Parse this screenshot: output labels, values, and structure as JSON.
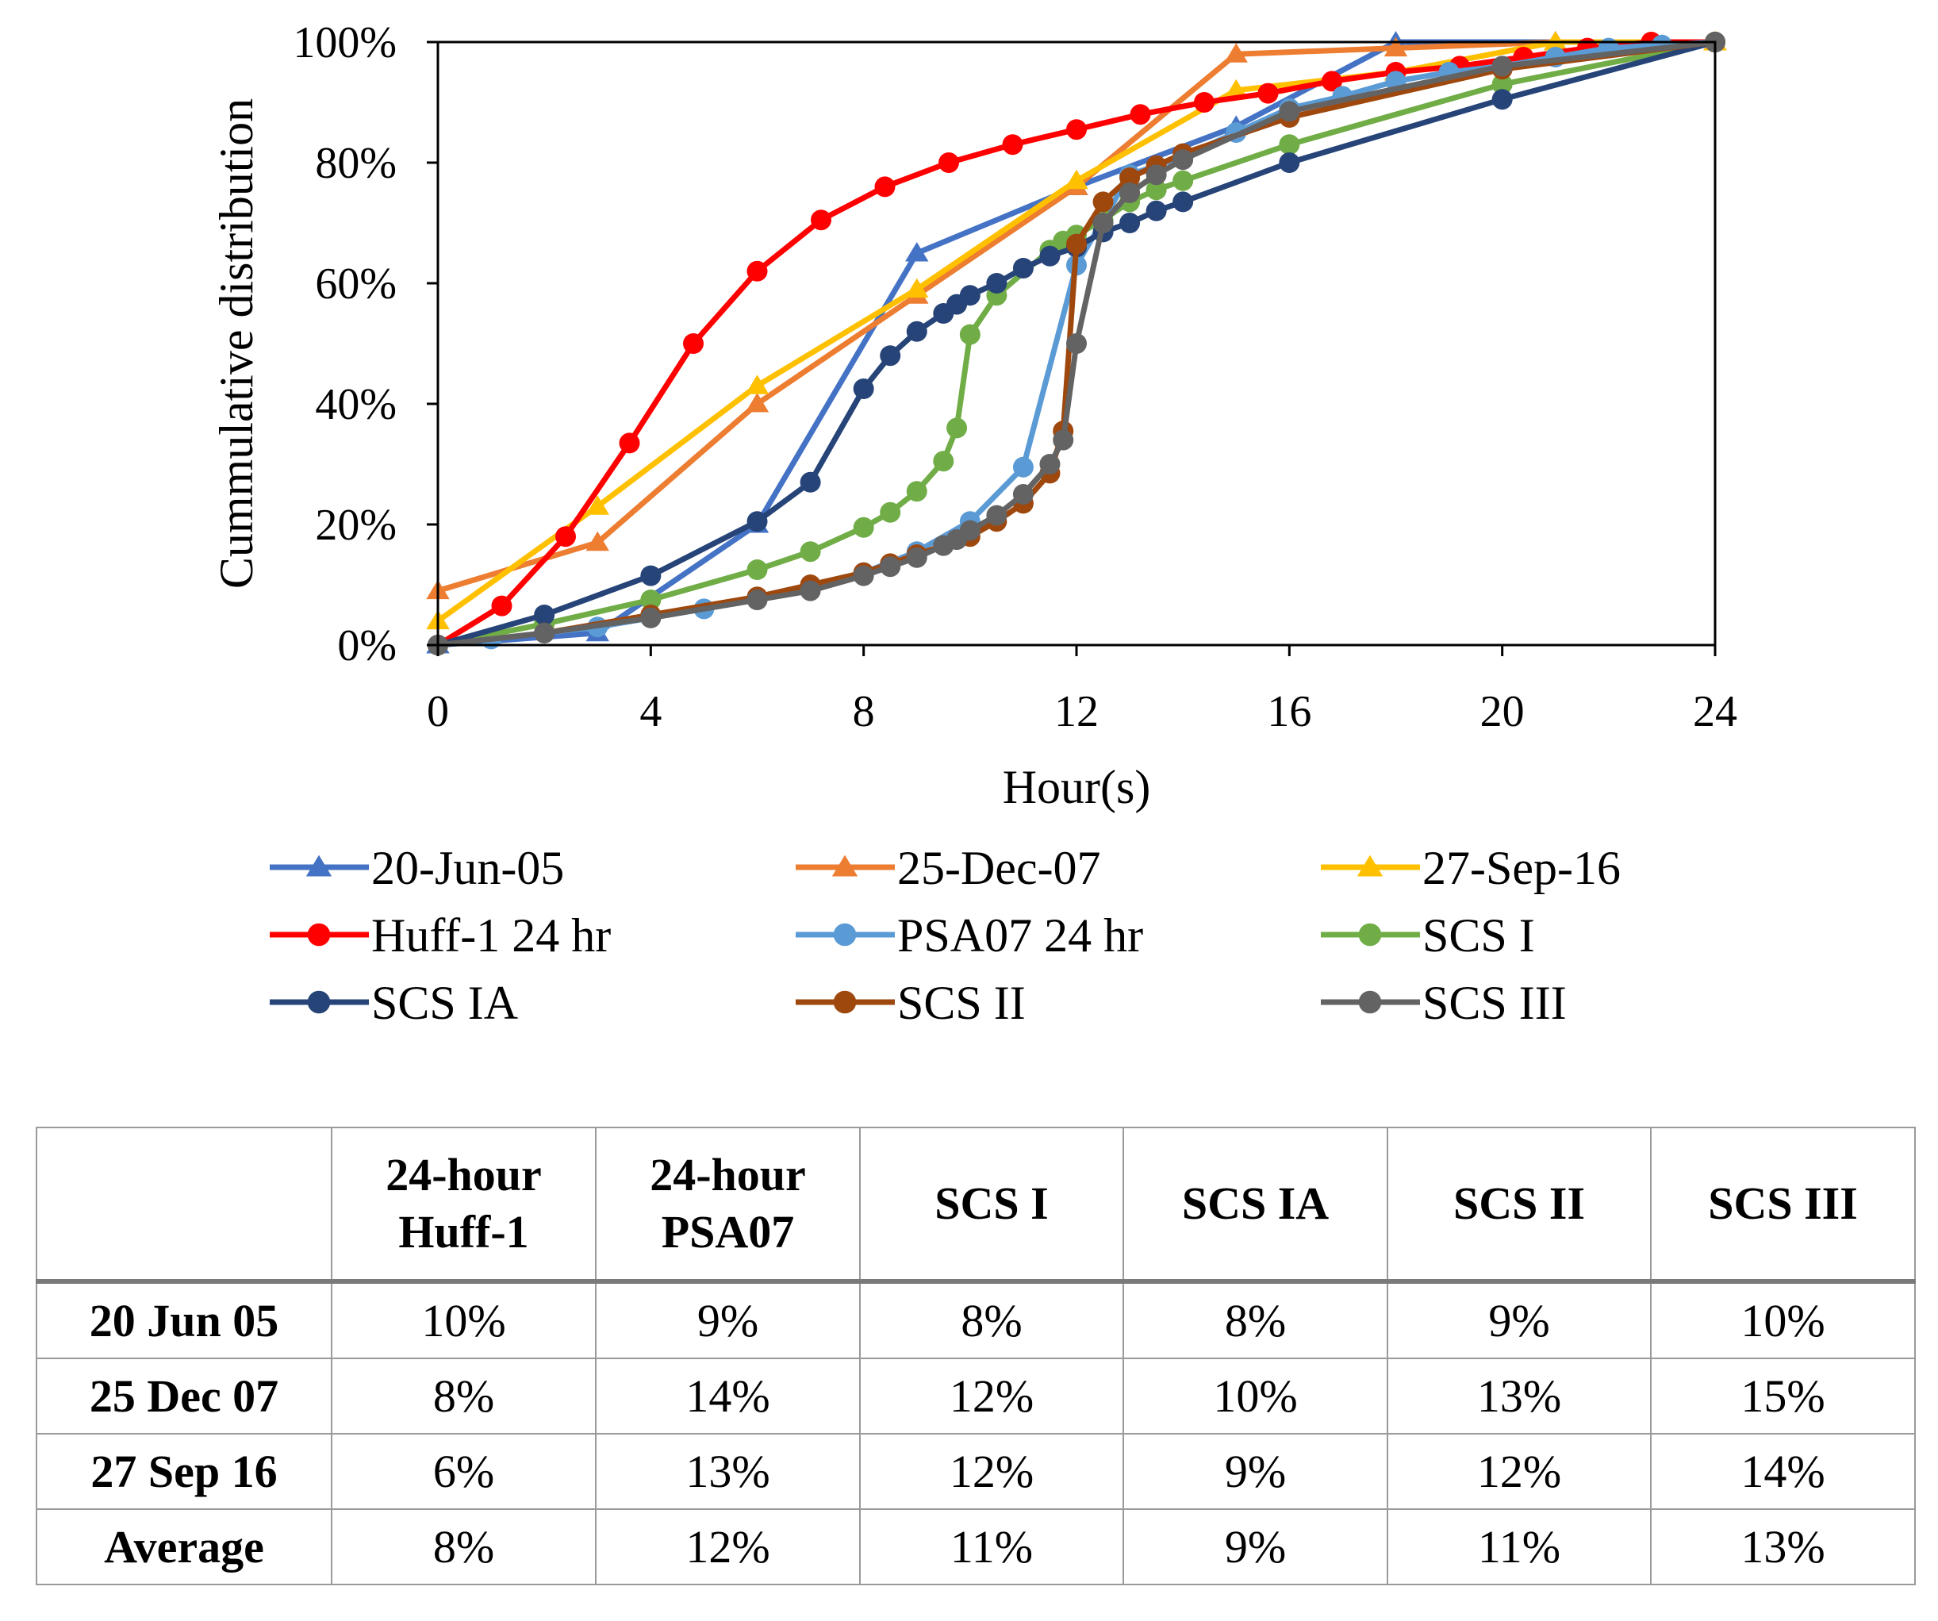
{
  "chart_data": {
    "type": "line",
    "title": "",
    "xlabel": "Hour(s)",
    "ylabel": "Cummulative distribution",
    "xlim": [
      0,
      24
    ],
    "ylim": [
      0,
      100
    ],
    "xticks": [
      "0",
      "4",
      "8",
      "12",
      "16",
      "20",
      "24"
    ],
    "yticks": [
      "0%",
      "20%",
      "40%",
      "60%",
      "80%",
      "100%"
    ],
    "grid": false,
    "legend_position": "bottom",
    "series": [
      {
        "name": "20-Jun-05",
        "color": "#4472C4",
        "marker": "triangle",
        "x": [
          0,
          3,
          6,
          9,
          12,
          15,
          18,
          21,
          24
        ],
        "y": [
          0,
          2,
          20,
          65,
          76,
          86,
          100,
          100,
          100
        ]
      },
      {
        "name": "25-Dec-07",
        "color": "#ED7D31",
        "marker": "triangle",
        "x": [
          0,
          3,
          6,
          9,
          12,
          15,
          18,
          21,
          24
        ],
        "y": [
          9,
          17,
          40,
          58,
          76,
          98,
          99,
          100,
          100
        ]
      },
      {
        "name": "27-Sep-16",
        "color": "#FFC000",
        "marker": "triangle",
        "x": [
          0,
          3,
          6,
          9,
          12,
          15,
          18,
          21,
          24
        ],
        "y": [
          4,
          23,
          43,
          59,
          77,
          92,
          95,
          100,
          100
        ]
      },
      {
        "name": "Huff-1 24 hr",
        "color": "#FF0000",
        "marker": "circle",
        "x": [
          0,
          1.2,
          2.4,
          3.6,
          4.8,
          6,
          7.2,
          8.4,
          9.6,
          10.8,
          12,
          13.2,
          14.4,
          15.6,
          16.8,
          18,
          19.2,
          20.4,
          21.6,
          22.8,
          24
        ],
        "y": [
          0,
          6.5,
          18,
          33.5,
          50,
          62,
          70.5,
          76,
          80,
          83,
          85.5,
          88,
          90,
          91.5,
          93.5,
          95,
          96,
          97.5,
          99,
          100,
          100
        ]
      },
      {
        "name": "PSA07 24 hr",
        "color": "#5B9BD5",
        "marker": "circle",
        "x": [
          0,
          1,
          2,
          3,
          4,
          5,
          6,
          7,
          8,
          9,
          10,
          11,
          12,
          13,
          14,
          15,
          16,
          17,
          18,
          19,
          20,
          21,
          22,
          23,
          24
        ],
        "y": [
          0,
          1,
          2,
          3,
          4.5,
          6,
          7.5,
          9.5,
          12,
          15.5,
          20.5,
          29.5,
          63,
          78,
          81,
          85,
          89,
          91,
          93.5,
          95,
          96,
          97.5,
          99,
          99.5,
          100
        ]
      },
      {
        "name": "SCS I",
        "color": "#70AD47",
        "marker": "circle",
        "x": [
          0,
          2,
          4,
          6,
          7,
          8,
          8.5,
          9,
          9.5,
          9.75,
          10,
          10.5,
          11.5,
          11.75,
          12,
          12.5,
          13,
          13.5,
          14,
          16,
          20,
          24
        ],
        "y": [
          0,
          3.5,
          7.5,
          12.5,
          15.5,
          19.5,
          22,
          25.5,
          30.5,
          36,
          51.5,
          58,
          65.5,
          67,
          68,
          70.5,
          73.5,
          75.5,
          77,
          83,
          93,
          100
        ]
      },
      {
        "name": "SCS IA",
        "color": "#264478",
        "marker": "circle",
        "x": [
          0,
          2,
          4,
          6,
          7,
          8,
          8.5,
          9,
          9.5,
          9.75,
          10,
          10.5,
          11,
          11.5,
          12,
          12.5,
          13,
          13.5,
          14,
          16,
          20,
          24
        ],
        "y": [
          0,
          5,
          11.5,
          20.5,
          27,
          42.5,
          48,
          52,
          55,
          56.5,
          58,
          60,
          62.5,
          64.5,
          66,
          68.5,
          70,
          72,
          73.5,
          80,
          90.5,
          100
        ]
      },
      {
        "name": "SCS II",
        "color": "#9E480E",
        "marker": "circle",
        "x": [
          0,
          2,
          4,
          6,
          7,
          8,
          8.5,
          9,
          9.5,
          9.75,
          10,
          10.5,
          11,
          11.5,
          11.75,
          12,
          12.5,
          13,
          13.5,
          14,
          16,
          20,
          24
        ],
        "y": [
          0,
          2,
          5,
          8,
          10,
          12,
          13.5,
          15,
          16.5,
          17.5,
          18,
          20.5,
          23.5,
          28.5,
          35.5,
          66.5,
          73.5,
          77.5,
          79.5,
          81.5,
          87.5,
          95.5,
          100
        ]
      },
      {
        "name": "SCS III",
        "color": "#636363",
        "marker": "circle",
        "x": [
          0,
          2,
          4,
          6,
          7,
          8,
          8.5,
          9,
          9.5,
          9.75,
          10,
          10.5,
          11,
          11.5,
          11.75,
          12,
          12.5,
          13,
          13.5,
          14,
          16,
          20,
          24
        ],
        "y": [
          0,
          2,
          4.5,
          7.5,
          9,
          11.5,
          13,
          14.5,
          16.5,
          17.5,
          19,
          21.5,
          25,
          30,
          34,
          50,
          70,
          75,
          78,
          80.5,
          88.5,
          96,
          100
        ]
      }
    ]
  },
  "table": {
    "headers": [
      {
        "line1": "",
        "line2": ""
      },
      {
        "line1": "24-hour",
        "line2": "Huff-1"
      },
      {
        "line1": "24-hour",
        "line2": "PSA07"
      },
      {
        "line1": "SCS I",
        "line2": ""
      },
      {
        "line1": "SCS IA",
        "line2": ""
      },
      {
        "line1": "SCS II",
        "line2": ""
      },
      {
        "line1": "SCS III",
        "line2": ""
      }
    ],
    "rows": [
      {
        "label": "20 Jun 05",
        "values": [
          "10%",
          "9%",
          "8%",
          "8%",
          "9%",
          "10%"
        ]
      },
      {
        "label": "25 Dec 07",
        "values": [
          "8%",
          "14%",
          "12%",
          "10%",
          "13%",
          "15%"
        ]
      },
      {
        "label": "27 Sep 16",
        "values": [
          "6%",
          "13%",
          "12%",
          "9%",
          "12%",
          "14%"
        ]
      },
      {
        "label": "Average",
        "values": [
          "8%",
          "12%",
          "11%",
          "9%",
          "11%",
          "13%"
        ]
      }
    ]
  }
}
